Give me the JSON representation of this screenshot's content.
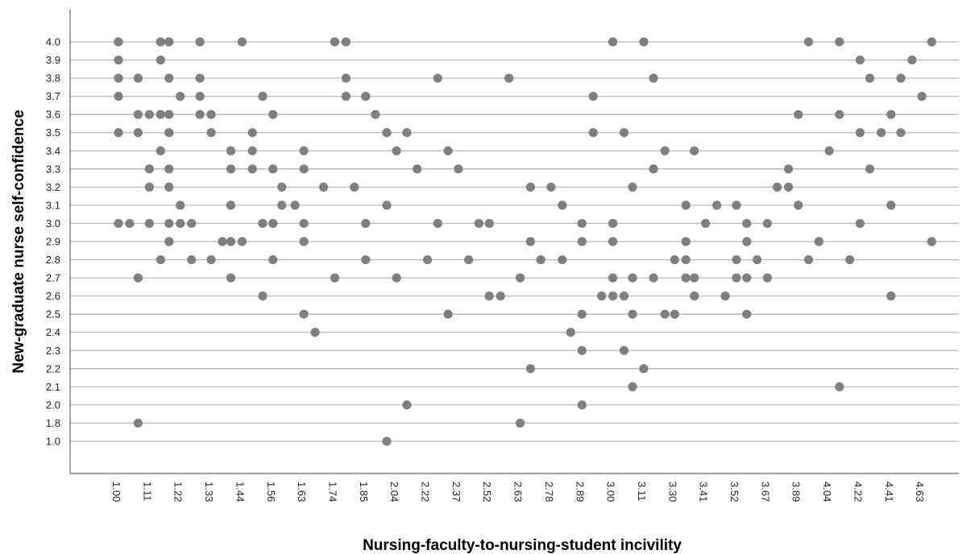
{
  "chart_data": {
    "type": "scatter",
    "x_label": "Nursing-faculty-to-nursing-student incivility",
    "y_label": "New-graduate nurse self-confidence",
    "color": "#7f7f7f",
    "grid": true,
    "xticks": [
      {
        "value": 1.0,
        "label": "1.00"
      },
      1.11,
      1.22,
      1.33,
      1.44,
      1.56,
      1.63,
      1.74,
      1.85,
      2.04,
      2.22,
      2.37,
      2.52,
      2.63,
      2.78,
      2.89,
      {
        "value": 3.0,
        "label": "3.00"
      },
      3.11,
      {
        "value": 3.3,
        "label": "3.30"
      },
      3.41,
      3.52,
      3.67,
      3.89,
      4.04,
      4.22,
      4.41,
      4.63
    ],
    "yticks": [
      {
        "value": 1.0,
        "label": "1.0"
      },
      1.8,
      {
        "value": 2.0,
        "label": "2.0"
      },
      2.1,
      2.2,
      2.3,
      2.4,
      2.5,
      2.6,
      2.7,
      2.8,
      2.9,
      {
        "value": 3.0,
        "label": "3.0"
      },
      3.1,
      3.2,
      3.3,
      3.4,
      3.5,
      3.6,
      3.7,
      3.8,
      3.9,
      {
        "value": 4.0,
        "label": "4.0"
      }
    ],
    "x": [
      1.0,
      1.15,
      1.18,
      1.29,
      1.44,
      1.74,
      1.78,
      3.0,
      3.11,
      3.94,
      4.1,
      4.7,
      1.0,
      1.15,
      4.22,
      4.56,
      1.0,
      1.07,
      1.18,
      1.29,
      1.78,
      2.27,
      2.59,
      3.17,
      4.28,
      4.48,
      1.0,
      1.22,
      1.29,
      1.52,
      1.78,
      1.85,
      2.93,
      4.63,
      1.07,
      1.11,
      1.15,
      1.18,
      1.29,
      1.33,
      1.56,
      1.91,
      3.89,
      4.1,
      4.41,
      1.0,
      1.07,
      1.18,
      1.33,
      1.48,
      1.98,
      2.1,
      2.93,
      3.04,
      4.22,
      4.35,
      4.48,
      1.15,
      1.4,
      1.48,
      1.63,
      2.04,
      2.32,
      3.24,
      3.37,
      4.04,
      1.11,
      1.18,
      1.4,
      1.48,
      1.56,
      1.63,
      2.16,
      2.37,
      3.17,
      3.82,
      4.28,
      1.11,
      1.18,
      1.58,
      1.7,
      1.81,
      2.68,
      2.78,
      3.07,
      3.74,
      3.82,
      1.22,
      1.4,
      1.58,
      1.61,
      1.98,
      2.82,
      3.34,
      3.45,
      3.52,
      3.89,
      4.41,
      1.0,
      1.04,
      1.11,
      1.18,
      1.22,
      1.26,
      1.52,
      1.56,
      1.63,
      1.85,
      2.27,
      2.47,
      2.52,
      2.89,
      3.0,
      3.41,
      3.57,
      3.67,
      4.22,
      1.18,
      1.37,
      1.4,
      1.44,
      1.63,
      2.68,
      2.89,
      3.0,
      3.34,
      3.57,
      3.99,
      4.7,
      1.15,
      1.26,
      1.33,
      1.56,
      1.85,
      2.22,
      2.42,
      2.73,
      2.82,
      3.3,
      3.34,
      3.52,
      3.62,
      3.94,
      4.16,
      1.07,
      1.4,
      1.74,
      2.04,
      2.63,
      3.0,
      3.07,
      3.17,
      3.34,
      3.37,
      3.52,
      3.57,
      3.67,
      1.52,
      2.52,
      2.56,
      2.96,
      3.0,
      3.04,
      3.37,
      3.48,
      4.41,
      1.63,
      2.32,
      2.89,
      3.07,
      3.24,
      3.3,
      3.57,
      1.67,
      2.85,
      2.89,
      3.04,
      2.68,
      3.11,
      3.07,
      4.1,
      2.1,
      2.89,
      1.07,
      2.63,
      1.98
    ],
    "values": [
      4.0,
      4.0,
      4.0,
      4.0,
      4.0,
      4.0,
      4.0,
      4.0,
      4.0,
      4.0,
      4.0,
      4.0,
      3.9,
      3.9,
      3.9,
      3.9,
      3.8,
      3.8,
      3.8,
      3.8,
      3.8,
      3.8,
      3.8,
      3.8,
      3.8,
      3.8,
      3.7,
      3.7,
      3.7,
      3.7,
      3.7,
      3.7,
      3.7,
      3.7,
      3.6,
      3.6,
      3.6,
      3.6,
      3.6,
      3.6,
      3.6,
      3.6,
      3.6,
      3.6,
      3.6,
      3.5,
      3.5,
      3.5,
      3.5,
      3.5,
      3.5,
      3.5,
      3.5,
      3.5,
      3.5,
      3.5,
      3.5,
      3.4,
      3.4,
      3.4,
      3.4,
      3.4,
      3.4,
      3.4,
      3.4,
      3.4,
      3.3,
      3.3,
      3.3,
      3.3,
      3.3,
      3.3,
      3.3,
      3.3,
      3.3,
      3.3,
      3.3,
      3.2,
      3.2,
      3.2,
      3.2,
      3.2,
      3.2,
      3.2,
      3.2,
      3.2,
      3.2,
      3.1,
      3.1,
      3.1,
      3.1,
      3.1,
      3.1,
      3.1,
      3.1,
      3.1,
      3.1,
      3.1,
      3.0,
      3.0,
      3.0,
      3.0,
      3.0,
      3.0,
      3.0,
      3.0,
      3.0,
      3.0,
      3.0,
      3.0,
      3.0,
      3.0,
      3.0,
      3.0,
      3.0,
      3.0,
      3.0,
      2.9,
      2.9,
      2.9,
      2.9,
      2.9,
      2.9,
      2.9,
      2.9,
      2.9,
      2.9,
      2.9,
      2.9,
      2.8,
      2.8,
      2.8,
      2.8,
      2.8,
      2.8,
      2.8,
      2.8,
      2.8,
      2.8,
      2.8,
      2.8,
      2.8,
      2.8,
      2.8,
      2.7,
      2.7,
      2.7,
      2.7,
      2.7,
      2.7,
      2.7,
      2.7,
      2.7,
      2.7,
      2.7,
      2.7,
      2.7,
      2.6,
      2.6,
      2.6,
      2.6,
      2.6,
      2.6,
      2.6,
      2.6,
      2.6,
      2.5,
      2.5,
      2.5,
      2.5,
      2.5,
      2.5,
      2.5,
      2.4,
      2.4,
      2.3,
      2.3,
      2.2,
      2.2,
      2.1,
      2.1,
      2.0,
      2.0,
      1.8,
      1.8,
      1.0
    ]
  }
}
